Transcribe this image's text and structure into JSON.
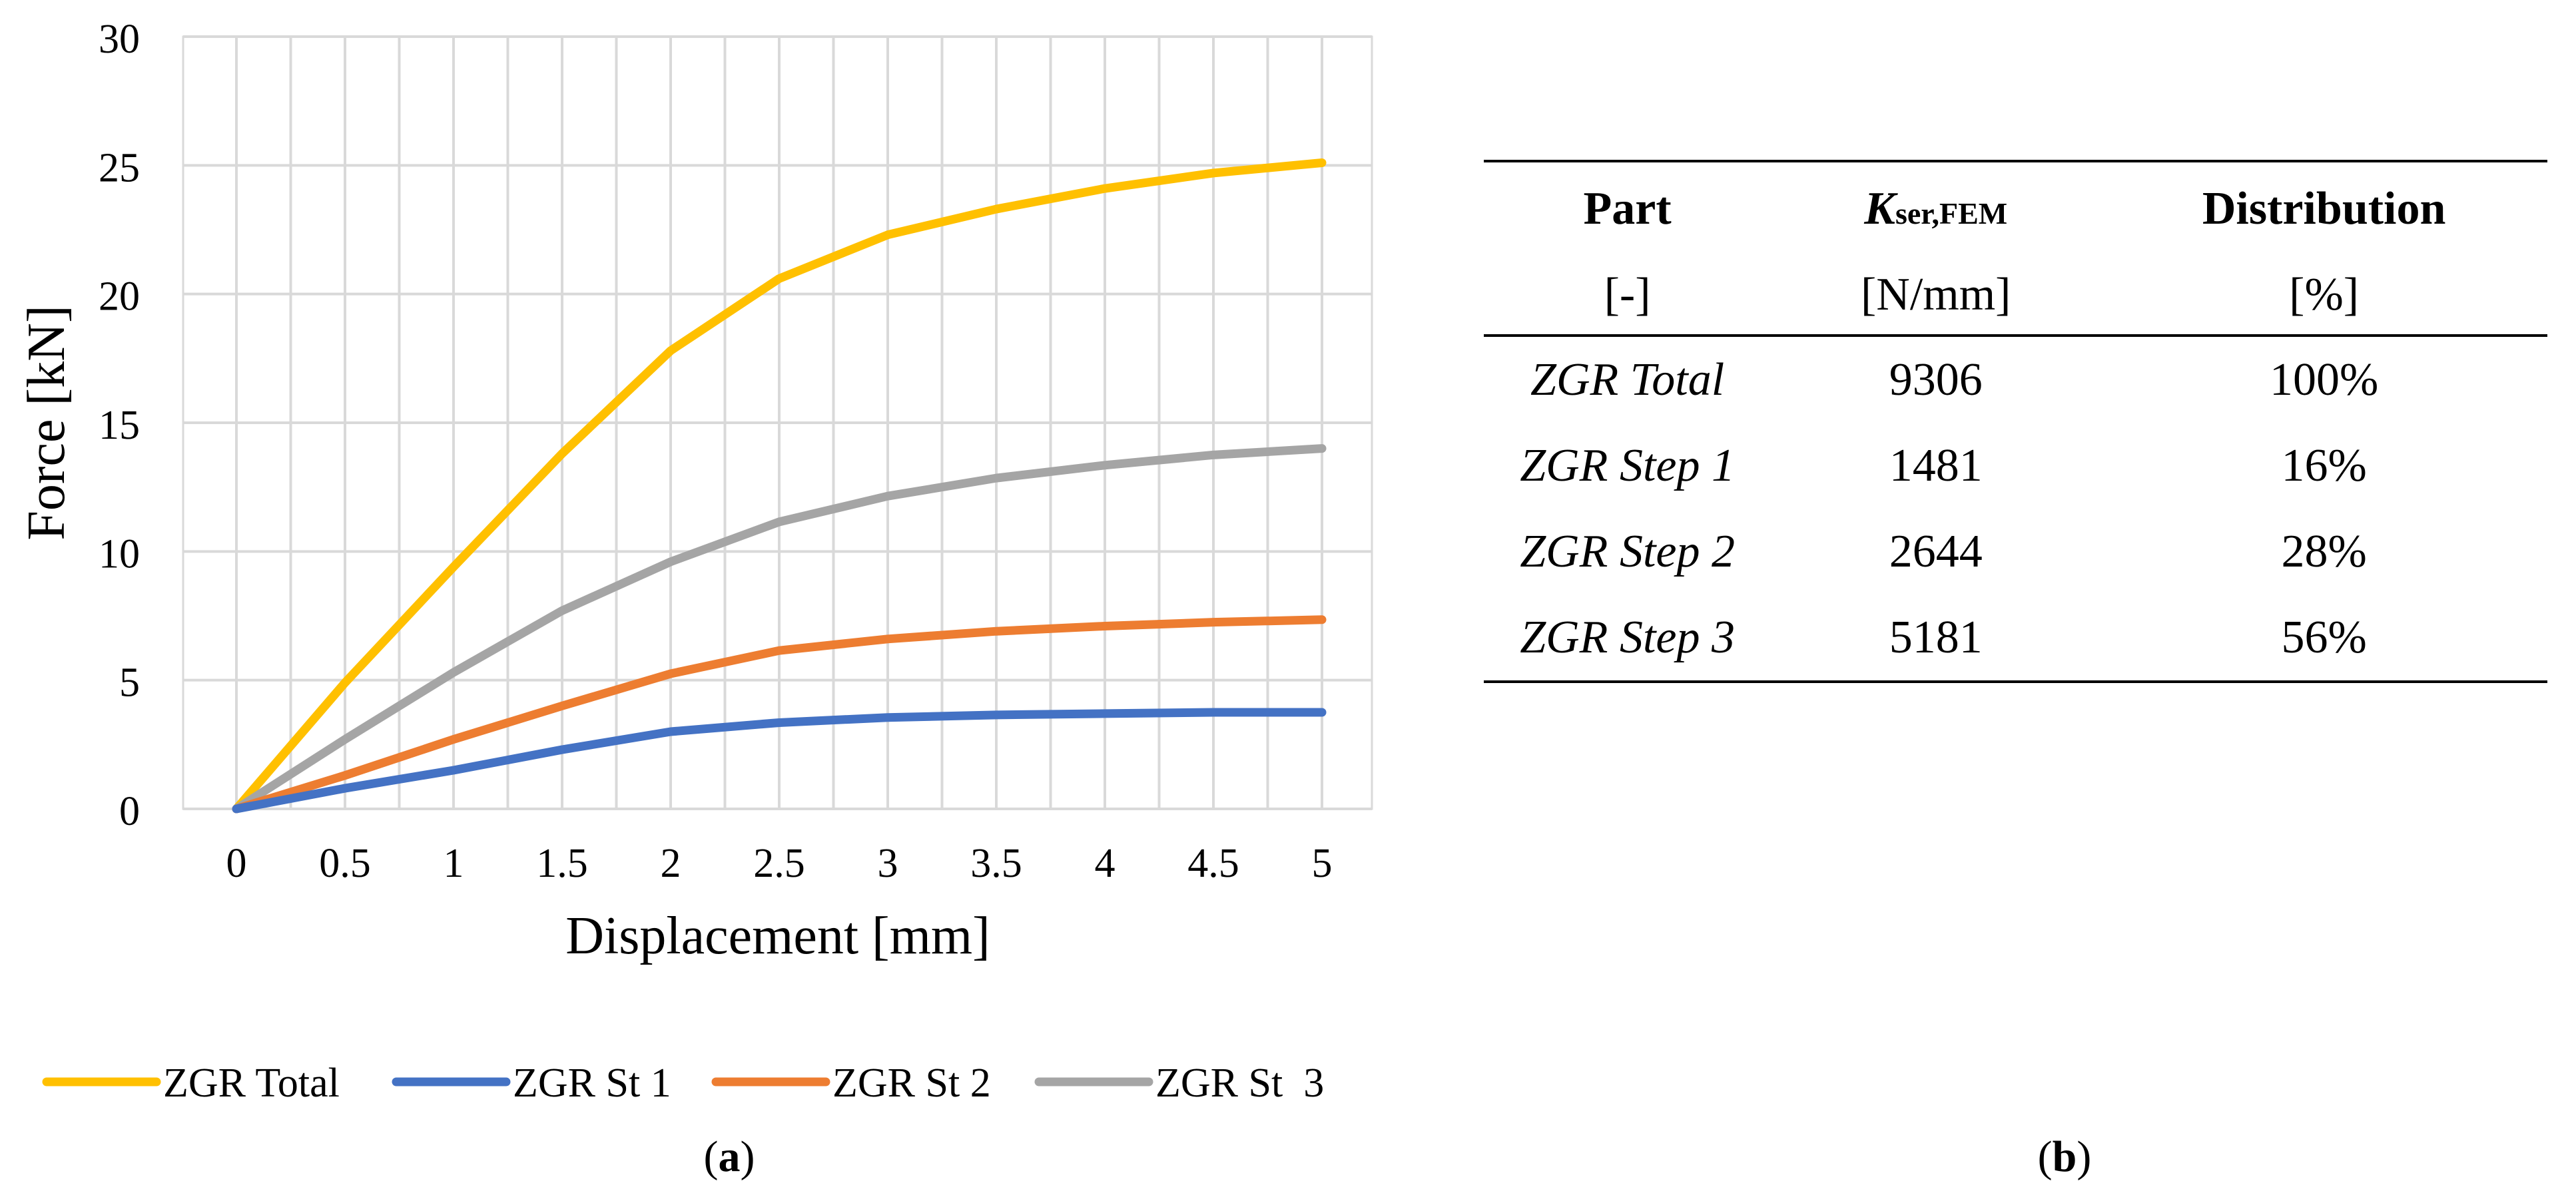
{
  "chart_data": {
    "type": "line",
    "xlabel": "Displacement [mm]",
    "ylabel": "Force [kN]",
    "xlim": [
      0,
      5
    ],
    "ylim": [
      0,
      30
    ],
    "x_ticks": [
      "0",
      "0.5",
      "1",
      "1.5",
      "2",
      "2.5",
      "3",
      "3.5",
      "4",
      "4.5",
      "5"
    ],
    "y_ticks": [
      "0",
      "5",
      "10",
      "15",
      "20",
      "25",
      "30"
    ],
    "grid": true,
    "legend_position": "bottom",
    "x": [
      0,
      0.5,
      1,
      1.5,
      2,
      2.5,
      3,
      3.5,
      4,
      4.5,
      5
    ],
    "series": [
      {
        "name": "ZGR Total",
        "color": "#FFC000",
        "values": [
          0,
          4.9,
          9.4,
          13.8,
          17.8,
          20.6,
          22.3,
          23.3,
          24.1,
          24.7,
          25.1
        ]
      },
      {
        "name": "ZGR St 1",
        "color": "#4472C4",
        "values": [
          0,
          0.8,
          1.5,
          2.3,
          3.0,
          3.35,
          3.55,
          3.65,
          3.7,
          3.75,
          3.75
        ]
      },
      {
        "name": "ZGR St 2",
        "color": "#ED7D31",
        "values": [
          0,
          1.3,
          2.7,
          4.0,
          5.25,
          6.15,
          6.6,
          6.9,
          7.1,
          7.25,
          7.35
        ]
      },
      {
        "name": "ZGR St  3",
        "color": "#A5A5A5",
        "values": [
          0,
          2.7,
          5.3,
          7.7,
          9.6,
          11.15,
          12.15,
          12.85,
          13.35,
          13.75,
          14.0
        ]
      }
    ]
  },
  "captions": {
    "a_open": "(",
    "a_letter": "a",
    "a_close": ")",
    "b_open": "(",
    "b_letter": "b",
    "b_close": ")"
  },
  "table": {
    "headers": {
      "part": "Part",
      "k_symbol": "K",
      "k_subscript": "ser,FEM",
      "distribution": "Distribution"
    },
    "units": {
      "part": "[-]",
      "k": "[N/mm]",
      "distribution": "[%]"
    },
    "rows": [
      {
        "part": "ZGR Total",
        "k": "9306",
        "dist": "100%"
      },
      {
        "part": "ZGR Step 1",
        "k": "1481",
        "dist": "16%"
      },
      {
        "part": "ZGR Step 2",
        "k": "2644",
        "dist": "28%"
      },
      {
        "part": "ZGR Step 3",
        "k": "5181",
        "dist": "56%"
      }
    ]
  }
}
